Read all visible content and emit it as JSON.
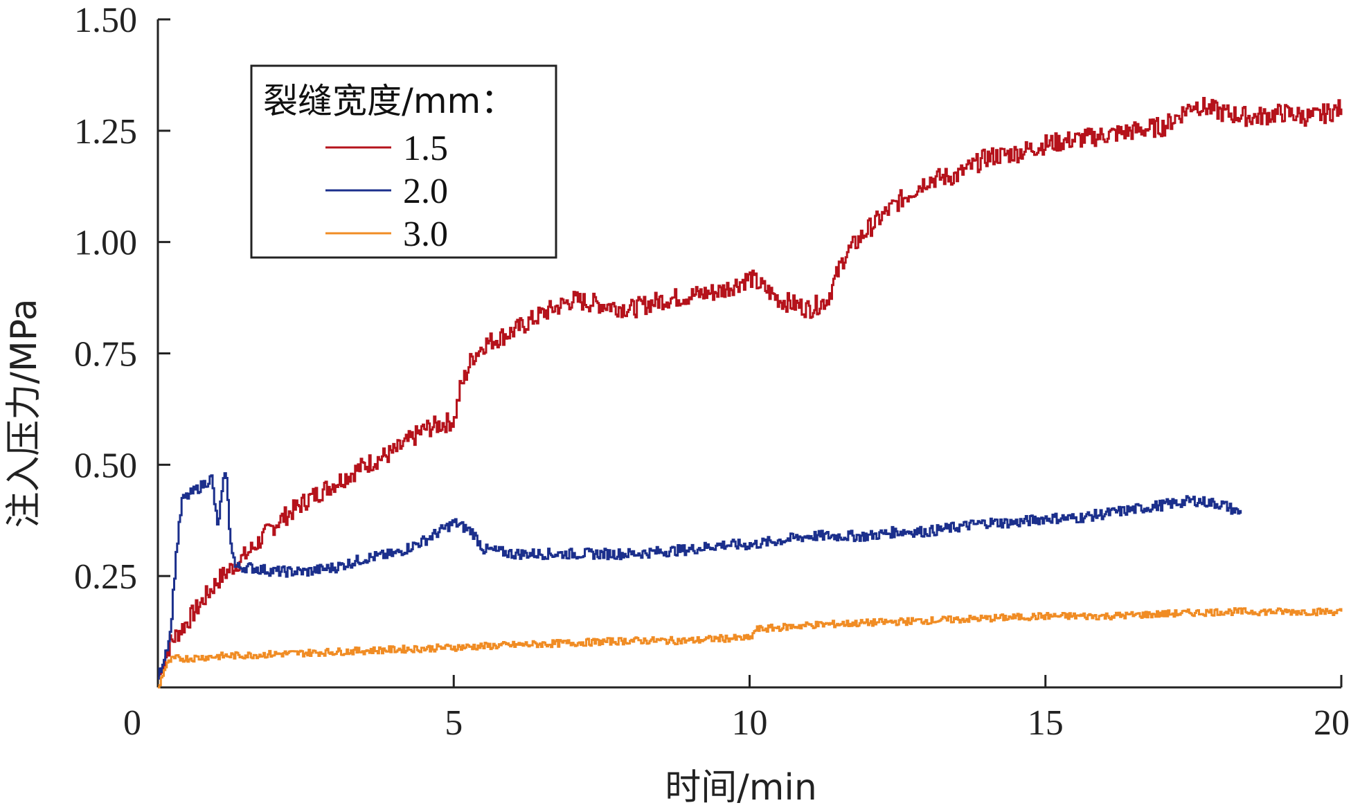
{
  "chart_data": {
    "type": "line",
    "xlabel": "时间/min",
    "ylabel": "注入压力/MPa",
    "xlim": [
      0,
      20
    ],
    "ylim": [
      0,
      1.5
    ],
    "xticks": [
      "0",
      "5",
      "10",
      "15",
      "20"
    ],
    "yticks": [
      "0.25",
      "0.50",
      "0.75",
      "1.00",
      "1.25",
      "1.50"
    ],
    "grid": false,
    "legend": {
      "title": "裂缝宽度/mm：",
      "placement": "top-left"
    },
    "series": [
      {
        "name": "1.5",
        "color": "#b5121b",
        "x": [
          0,
          0.2,
          0.5,
          1,
          1.5,
          2,
          2.5,
          3,
          3.5,
          4,
          4.5,
          5,
          5.1,
          5.3,
          5.5,
          6,
          6.5,
          7,
          7.5,
          8,
          8.5,
          9,
          9.5,
          10,
          10.5,
          11,
          11.3,
          11.6,
          12,
          12.5,
          13,
          13.5,
          14,
          14.5,
          15,
          15.5,
          16,
          16.5,
          17,
          17.5,
          18,
          18.5,
          19,
          19.5,
          20
        ],
        "y": [
          0.02,
          0.1,
          0.15,
          0.24,
          0.3,
          0.37,
          0.42,
          0.46,
          0.5,
          0.53,
          0.58,
          0.6,
          0.67,
          0.74,
          0.77,
          0.8,
          0.84,
          0.87,
          0.86,
          0.85,
          0.87,
          0.88,
          0.89,
          0.92,
          0.87,
          0.85,
          0.87,
          0.97,
          1.03,
          1.09,
          1.14,
          1.15,
          1.19,
          1.2,
          1.22,
          1.23,
          1.24,
          1.25,
          1.26,
          1.31,
          1.29,
          1.28,
          1.29,
          1.28,
          1.3
        ]
      },
      {
        "name": "2.0",
        "color": "#1b2f8c",
        "x": [
          0,
          0.2,
          0.3,
          0.4,
          0.6,
          0.8,
          0.9,
          1.0,
          1.1,
          1.15,
          1.2,
          1.3,
          1.5,
          2,
          2.5,
          3,
          3.5,
          4,
          4.5,
          5,
          5.3,
          5.5,
          6,
          7,
          8,
          9,
          9.5,
          10,
          10.5,
          11,
          11.5,
          12,
          12.5,
          13,
          13.5,
          14,
          14.5,
          15,
          15.5,
          16,
          16.5,
          17,
          17.5,
          18,
          18.3
        ],
        "y": [
          0.02,
          0.12,
          0.3,
          0.42,
          0.44,
          0.46,
          0.47,
          0.36,
          0.46,
          0.48,
          0.35,
          0.27,
          0.27,
          0.26,
          0.26,
          0.27,
          0.29,
          0.3,
          0.33,
          0.37,
          0.35,
          0.31,
          0.3,
          0.3,
          0.3,
          0.31,
          0.32,
          0.32,
          0.33,
          0.34,
          0.34,
          0.34,
          0.35,
          0.35,
          0.36,
          0.37,
          0.37,
          0.38,
          0.38,
          0.39,
          0.4,
          0.41,
          0.42,
          0.41,
          0.39
        ]
      },
      {
        "name": "3.0",
        "color": "#f08c24",
        "x": [
          0,
          0.1,
          0.2,
          0.3,
          0.5,
          1,
          2,
          3,
          4,
          5,
          6,
          7,
          8,
          9,
          9.5,
          10,
          10.1,
          11,
          12,
          13,
          14,
          15,
          16,
          17,
          18,
          19,
          20
        ],
        "y": [
          0.0,
          0.04,
          0.06,
          0.065,
          0.065,
          0.07,
          0.075,
          0.08,
          0.085,
          0.09,
          0.095,
          0.1,
          0.105,
          0.105,
          0.11,
          0.11,
          0.13,
          0.14,
          0.145,
          0.15,
          0.155,
          0.16,
          0.16,
          0.165,
          0.17,
          0.17,
          0.17
        ]
      }
    ]
  }
}
